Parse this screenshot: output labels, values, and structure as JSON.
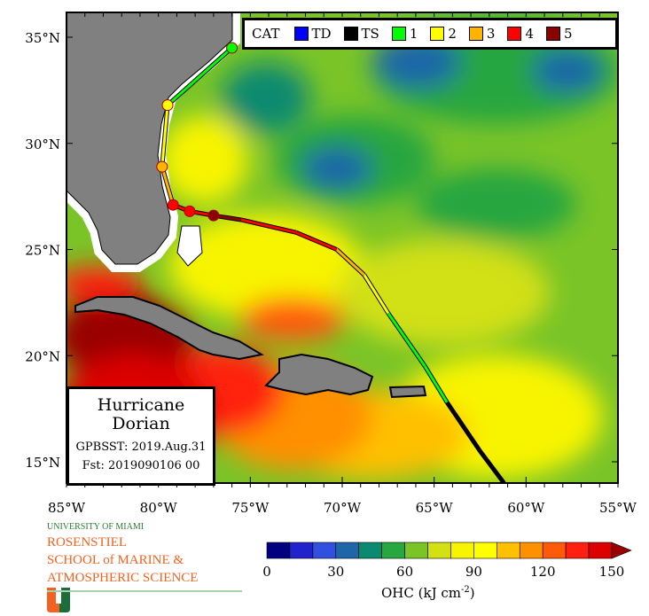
{
  "map": {
    "lon_range": [
      -85,
      -55
    ],
    "lat_range": [
      14,
      36.2
    ],
    "lon_ticks": [
      "85°W",
      "80°W",
      "75°W",
      "70°W",
      "65°W",
      "60°W",
      "55°W"
    ],
    "lat_ticks": [
      "15°N",
      "20°N",
      "25°N",
      "30°N",
      "35°N"
    ],
    "track": [
      {
        "lon": -61.2,
        "lat": 14.0,
        "cat": "TS"
      },
      {
        "lon": -62.5,
        "lat": 15.5,
        "cat": "TS"
      },
      {
        "lon": -64.3,
        "lat": 17.8,
        "cat": "TS"
      },
      {
        "lon": -65.5,
        "lat": 19.5,
        "cat": "1"
      },
      {
        "lon": -67.5,
        "lat": 22.0,
        "cat": "1"
      },
      {
        "lon": -68.8,
        "lat": 23.8,
        "cat": "2"
      },
      {
        "lon": -70.3,
        "lat": 25.0,
        "cat": "3"
      },
      {
        "lon": -72.5,
        "lat": 25.8,
        "cat": "4"
      },
      {
        "lon": -75.5,
        "lat": 26.4,
        "cat": "4"
      },
      {
        "lon": -77.0,
        "lat": 26.6,
        "cat": "5"
      },
      {
        "lon": -78.3,
        "lat": 26.8,
        "cat": "4"
      },
      {
        "lon": -79.2,
        "lat": 27.1,
        "cat": "4"
      },
      {
        "lon": -79.8,
        "lat": 28.9,
        "cat": "3"
      },
      {
        "lon": -79.5,
        "lat": 31.8,
        "cat": "2"
      },
      {
        "lon": -76.0,
        "lat": 34.5,
        "cat": "1"
      }
    ]
  },
  "legend": {
    "title": "CAT",
    "items": [
      {
        "label": "TD",
        "color": "#0000ff"
      },
      {
        "label": "TS",
        "color": "#000000"
      },
      {
        "label": "1",
        "color": "#00ff00"
      },
      {
        "label": "2",
        "color": "#ffff00"
      },
      {
        "label": "3",
        "color": "#ffb400"
      },
      {
        "label": "4",
        "color": "#ff0000"
      },
      {
        "label": "5",
        "color": "#8b0000"
      }
    ]
  },
  "infobox": {
    "line1": "Hurricane",
    "line2": "Dorian",
    "line3": "GPBSST: 2019.Aug.31",
    "line4": "Fst: 2019090106 00"
  },
  "colorbar": {
    "label": "OHC (kJ cm",
    "label_exp": "-2",
    "label_close": ")",
    "ticks": [
      "0",
      "30",
      "60",
      "90",
      "120",
      "150"
    ],
    "colors": [
      "#000080",
      "#2222cc",
      "#3050dd",
      "#1f66a8",
      "#0a8a70",
      "#28a640",
      "#7ac428",
      "#d2e014",
      "#f8f400",
      "#ffff00",
      "#ffc000",
      "#ff9000",
      "#ff5a0a",
      "#ff2010",
      "#dd0000"
    ],
    "over_color": "#990000"
  },
  "logo": {
    "university": "UNIVERSITY OF MIAMI",
    "school_line1": "ROSENSTIEL",
    "school_line2": "SCHOOL of MARINE &",
    "school_line3": "ATMOSPHERIC SCIENCE"
  }
}
